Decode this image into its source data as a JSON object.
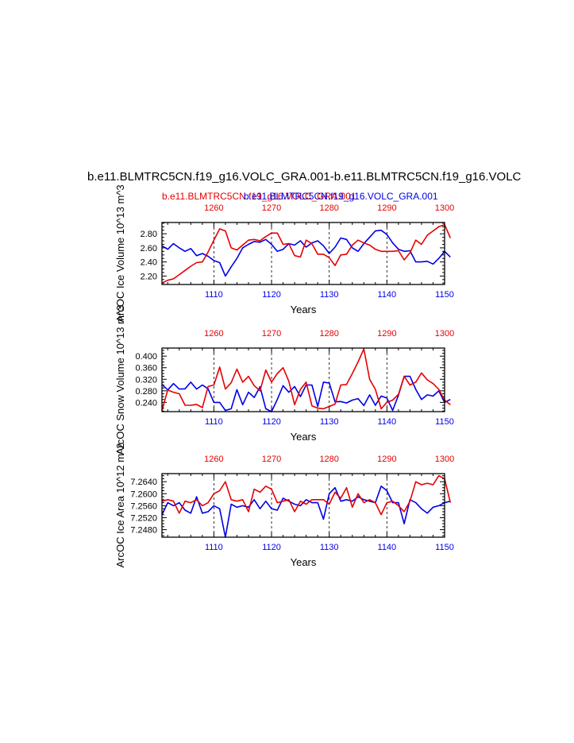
{
  "title": "b.e11.BLMTRC5CN.f19_g16.VOLC_GRA.001-b.e11.BLMTRC5CN.f19_g16.VOLC",
  "subtitle_left": "b.e11.BLMTRC5CN.f19_g16.VOLC_GRA.001",
  "subtitle_right": "b.e11.BLMTRC5CN.f19_g16.VOLC_GRA.001",
  "colors": {
    "red": "#e60000",
    "blue": "#0000e6"
  },
  "chart_data": [
    {
      "type": "line",
      "ylabel": "ArcOC Ice Volume 10^13 m^3",
      "xlabel": "Years",
      "x_bottom_ticks": [
        "1110",
        "1120",
        "1130",
        "1140",
        "1150"
      ],
      "x_top_ticks": [
        "1260",
        "1270",
        "1280",
        "1290",
        "1300"
      ],
      "y_ticks": [
        "2.80",
        "2.60",
        "2.40",
        "2.20"
      ],
      "xlim": [
        1101,
        1150
      ],
      "ylim": [
        2.08,
        2.96
      ],
      "y_tick_values": [
        2.8,
        2.6,
        2.4,
        2.2
      ],
      "series": [
        {
          "color": "blue",
          "axis": "bottom",
          "x_start": 1101,
          "values": [
            2.63,
            2.58,
            2.66,
            2.6,
            2.55,
            2.59,
            2.49,
            2.52,
            2.48,
            2.42,
            2.39,
            2.2,
            2.33,
            2.45,
            2.6,
            2.65,
            2.69,
            2.68,
            2.72,
            2.65,
            2.55,
            2.58,
            2.66,
            2.64,
            2.7,
            2.61,
            2.67,
            2.7,
            2.63,
            2.52,
            2.61,
            2.74,
            2.72,
            2.6,
            2.55,
            2.66,
            2.75,
            2.84,
            2.85,
            2.79,
            2.67,
            2.58,
            2.55,
            2.56,
            2.4,
            2.4,
            2.41,
            2.37,
            2.45,
            2.55,
            2.47
          ]
        },
        {
          "color": "red",
          "axis": "top",
          "x_start": 1251,
          "values": [
            2.1,
            2.14,
            2.16,
            2.22,
            2.28,
            2.34,
            2.39,
            2.4,
            2.54,
            2.71,
            2.87,
            2.84,
            2.6,
            2.57,
            2.64,
            2.71,
            2.72,
            2.7,
            2.76,
            2.81,
            2.81,
            2.65,
            2.66,
            2.49,
            2.47,
            2.71,
            2.66,
            2.51,
            2.51,
            2.46,
            2.35,
            2.5,
            2.51,
            2.64,
            2.71,
            2.67,
            2.64,
            2.58,
            2.55,
            2.55,
            2.55,
            2.56,
            2.43,
            2.53,
            2.71,
            2.65,
            2.78,
            2.84,
            2.9,
            2.93,
            2.74
          ]
        }
      ]
    },
    {
      "type": "line",
      "ylabel": "ArcOC Snow Volume 10^13 m^3",
      "xlabel": "Years",
      "x_bottom_ticks": [
        "1110",
        "1120",
        "1130",
        "1140",
        "1150"
      ],
      "x_top_ticks": [
        "1260",
        "1270",
        "1280",
        "1290",
        "1300"
      ],
      "y_ticks": [
        "0.400",
        "0.360",
        "0.320",
        "0.280",
        "0.240"
      ],
      "xlim": [
        1101,
        1150
      ],
      "ylim": [
        0.208,
        0.428
      ],
      "y_tick_values": [
        0.4,
        0.36,
        0.32,
        0.28,
        0.24
      ],
      "series": [
        {
          "color": "blue",
          "axis": "bottom",
          "x_start": 1101,
          "values": [
            0.302,
            0.283,
            0.305,
            0.286,
            0.287,
            0.31,
            0.286,
            0.3,
            0.287,
            0.24,
            0.24,
            0.212,
            0.218,
            0.284,
            0.232,
            0.275,
            0.257,
            0.294,
            0.218,
            0.207,
            0.25,
            0.298,
            0.275,
            0.295,
            0.26,
            0.3,
            0.3,
            0.226,
            0.31,
            0.307,
            0.242,
            0.243,
            0.238,
            0.248,
            0.253,
            0.229,
            0.266,
            0.23,
            0.262,
            0.255,
            0.212,
            0.265,
            0.33,
            0.33,
            0.285,
            0.25,
            0.266,
            0.262,
            0.28,
            0.24,
            0.25
          ]
        },
        {
          "color": "red",
          "axis": "top",
          "x_start": 1251,
          "values": [
            0.212,
            0.283,
            0.275,
            0.27,
            0.23,
            0.23,
            0.233,
            0.222,
            0.295,
            0.3,
            0.362,
            0.286,
            0.308,
            0.355,
            0.31,
            0.33,
            0.298,
            0.28,
            0.352,
            0.31,
            0.34,
            0.36,
            0.313,
            0.232,
            0.285,
            0.31,
            0.228,
            0.22,
            0.218,
            0.226,
            0.234,
            0.3,
            0.302,
            0.34,
            0.38,
            0.425,
            0.32,
            0.285,
            0.218,
            0.24,
            0.248,
            0.268,
            0.33,
            0.3,
            0.31,
            0.342,
            0.318,
            0.305,
            0.285,
            0.248,
            0.232
          ]
        }
      ]
    },
    {
      "type": "line",
      "ylabel": "ArcOC Ice Area 10^12 m^2",
      "xlabel": "Years",
      "x_bottom_ticks": [
        "1110",
        "1120",
        "1130",
        "1140",
        "1150"
      ],
      "x_top_ticks": [
        "1260",
        "1270",
        "1280",
        "1290",
        "1300"
      ],
      "y_ticks": [
        "7.2640",
        "7.2600",
        "7.2560",
        "7.2520",
        "7.2480"
      ],
      "xlim": [
        1101,
        1150
      ],
      "ylim": [
        7.2455,
        7.2667
      ],
      "y_tick_values": [
        7.264,
        7.26,
        7.256,
        7.252,
        7.248
      ],
      "series": [
        {
          "color": "blue",
          "axis": "bottom",
          "x_start": 1101,
          "values": [
            7.253,
            7.257,
            7.256,
            7.257,
            7.2545,
            7.2535,
            7.259,
            7.2535,
            7.254,
            7.256,
            7.255,
            7.2455,
            7.2565,
            7.2555,
            7.256,
            7.2555,
            7.258,
            7.255,
            7.2575,
            7.255,
            7.2545,
            7.2585,
            7.2575,
            7.2565,
            7.256,
            7.258,
            7.257,
            7.257,
            7.2515,
            7.26,
            7.262,
            7.2575,
            7.258,
            7.2575,
            7.259,
            7.258,
            7.2575,
            7.257,
            7.2625,
            7.261,
            7.257,
            7.257,
            7.25,
            7.258,
            7.257,
            7.255,
            7.2535,
            7.2555,
            7.256,
            7.257,
            7.2575
          ]
        },
        {
          "color": "red",
          "axis": "top",
          "x_start": 1251,
          "values": [
            7.2575,
            7.258,
            7.2575,
            7.2535,
            7.2575,
            7.257,
            7.258,
            7.256,
            7.257,
            7.26,
            7.261,
            7.264,
            7.258,
            7.2575,
            7.258,
            7.254,
            7.2615,
            7.2605,
            7.2625,
            7.2615,
            7.257,
            7.2575,
            7.258,
            7.254,
            7.2575,
            7.2565,
            7.258,
            7.258,
            7.258,
            7.2565,
            7.2605,
            7.2585,
            7.262,
            7.2555,
            7.26,
            7.257,
            7.258,
            7.257,
            7.253,
            7.257,
            7.2575,
            7.256,
            7.254,
            7.2575,
            7.264,
            7.263,
            7.2635,
            7.263,
            7.266,
            7.265,
            7.257
          ]
        }
      ]
    }
  ]
}
